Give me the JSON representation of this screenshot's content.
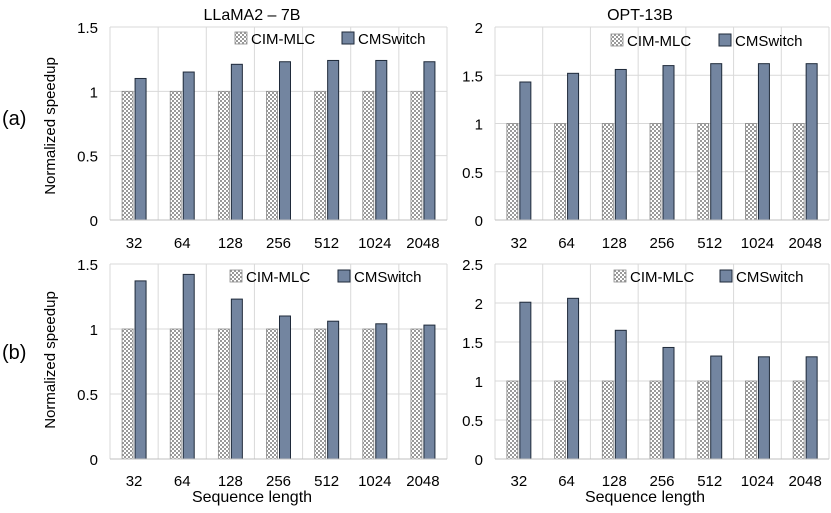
{
  "figure": {
    "col_titles": [
      "LLaMA2 – 7B",
      "OPT-13B"
    ],
    "row_labels": [
      "(a)",
      "(b)"
    ],
    "ylabel": "Normalized speedup",
    "xlabel": "Sequence length",
    "colors": {
      "baseline_fill": "#ffffff",
      "baseline_pattern": "#9a9a9a",
      "cmswitch": "#7385a0",
      "bar_stroke": "#1f2a3a",
      "grid": "#d9d9d9"
    },
    "icons": {
      "baseline_swatch": "checker-pattern",
      "cmswitch_swatch": "solid-fill"
    }
  },
  "chart_data": [
    {
      "id": "a-llama",
      "type": "bar",
      "title": "LLaMA2 – 7B",
      "row": "(a)",
      "categories": [
        "32",
        "64",
        "128",
        "256",
        "512",
        "1024",
        "2048"
      ],
      "series": [
        {
          "name": "CIM-MLC",
          "values": [
            1,
            1,
            1,
            1,
            1,
            1,
            1
          ]
        },
        {
          "name": "CMSwitch",
          "values": [
            1.1,
            1.15,
            1.21,
            1.23,
            1.24,
            1.24,
            1.23
          ]
        }
      ],
      "ylim": [
        0,
        1.5
      ],
      "yticks": [
        0,
        0.5,
        1,
        1.5
      ],
      "ytick_labels": [
        "0",
        "0.5",
        "1",
        "1.5"
      ],
      "ylabel": "Normalized speedup",
      "xlabel": "",
      "grid": true,
      "legend": "top-right"
    },
    {
      "id": "a-opt",
      "type": "bar",
      "title": "OPT-13B",
      "row": "(a)",
      "categories": [
        "32",
        "64",
        "128",
        "256",
        "512",
        "1024",
        "2048"
      ],
      "series": [
        {
          "name": "CIM-MLC",
          "values": [
            1,
            1,
            1,
            1,
            1,
            1,
            1
          ]
        },
        {
          "name": "CMSwitch",
          "values": [
            1.43,
            1.52,
            1.56,
            1.6,
            1.62,
            1.62,
            1.62
          ]
        }
      ],
      "ylim": [
        0,
        2
      ],
      "yticks": [
        0,
        0.5,
        1,
        1.5,
        2
      ],
      "ytick_labels": [
        "0",
        "0.5",
        "1",
        "1.5",
        "2"
      ],
      "ylabel": "",
      "xlabel": "",
      "grid": true,
      "legend": "top-right"
    },
    {
      "id": "b-llama",
      "type": "bar",
      "title": "",
      "row": "(b)",
      "categories": [
        "32",
        "64",
        "128",
        "256",
        "512",
        "1024",
        "2048"
      ],
      "series": [
        {
          "name": "CIM-MLC",
          "values": [
            1,
            1,
            1,
            1,
            1,
            1,
            1
          ]
        },
        {
          "name": "CMSwitch",
          "values": [
            1.37,
            1.42,
            1.23,
            1.1,
            1.06,
            1.04,
            1.03
          ]
        }
      ],
      "ylim": [
        0,
        1.5
      ],
      "yticks": [
        0,
        0.5,
        1,
        1.5
      ],
      "ytick_labels": [
        "0",
        "0.5",
        "1",
        "1.5"
      ],
      "ylabel": "Normalized speedup",
      "xlabel": "Sequence length",
      "grid": true,
      "legend": "top-right"
    },
    {
      "id": "b-opt",
      "type": "bar",
      "title": "",
      "row": "(b)",
      "categories": [
        "32",
        "64",
        "128",
        "256",
        "512",
        "1024",
        "2048"
      ],
      "series": [
        {
          "name": "CIM-MLC",
          "values": [
            1,
            1,
            1,
            1,
            1,
            1,
            1
          ]
        },
        {
          "name": "CMSwitch",
          "values": [
            2.01,
            2.06,
            1.65,
            1.43,
            1.32,
            1.31,
            1.31
          ]
        }
      ],
      "ylim": [
        0,
        2.5
      ],
      "yticks": [
        0,
        0.5,
        1,
        1.5,
        2,
        2.5
      ],
      "ytick_labels": [
        "0",
        "0.5",
        "1",
        "1.5",
        "2",
        "2.5"
      ],
      "ylabel": "",
      "xlabel": "Sequence length",
      "grid": true,
      "legend": "top-right"
    }
  ]
}
